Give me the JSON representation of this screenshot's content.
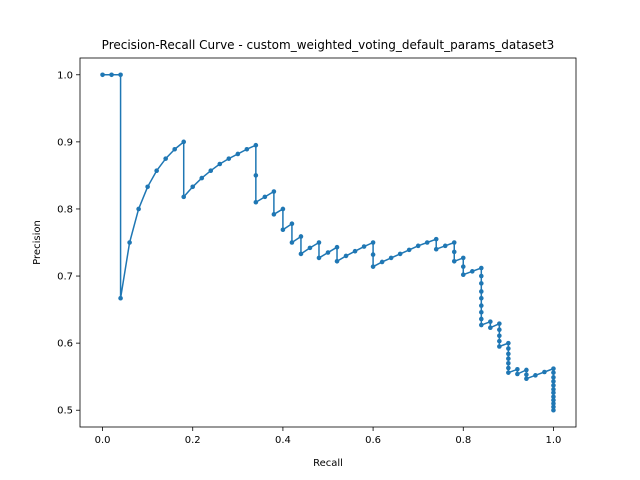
{
  "chart_data": {
    "type": "line",
    "title": "Precision-Recall Curve - custom_weighted_voting_default_params_dataset3",
    "xlabel": "Recall",
    "ylabel": "Precision",
    "xlim": [
      -0.05,
      1.05
    ],
    "ylim": [
      0.475,
      1.025
    ],
    "xticks": [
      0.0,
      0.2,
      0.4,
      0.6,
      0.8,
      1.0
    ],
    "xtick_labels": [
      "0.0",
      "0.2",
      "0.4",
      "0.6",
      "0.8",
      "1.0"
    ],
    "yticks": [
      0.5,
      0.6,
      0.7,
      0.8,
      0.9,
      1.0
    ],
    "ytick_labels": [
      "0.5",
      "0.6",
      "0.7",
      "0.8",
      "0.9",
      "1.0"
    ],
    "grid": false,
    "legend": false,
    "series": [
      {
        "color": "#1f77b4",
        "marker": "circle",
        "points": [
          [
            0.0,
            1.0
          ],
          [
            0.02,
            1.0
          ],
          [
            0.04,
            1.0
          ],
          [
            0.04,
            0.667
          ],
          [
            0.06,
            0.75
          ],
          [
            0.08,
            0.8
          ],
          [
            0.1,
            0.833
          ],
          [
            0.12,
            0.857
          ],
          [
            0.14,
            0.875
          ],
          [
            0.16,
            0.889
          ],
          [
            0.18,
            0.9
          ],
          [
            0.18,
            0.818
          ],
          [
            0.2,
            0.833
          ],
          [
            0.22,
            0.846
          ],
          [
            0.24,
            0.857
          ],
          [
            0.26,
            0.867
          ],
          [
            0.28,
            0.875
          ],
          [
            0.3,
            0.882
          ],
          [
            0.32,
            0.889
          ],
          [
            0.34,
            0.895
          ],
          [
            0.34,
            0.85
          ],
          [
            0.34,
            0.81
          ],
          [
            0.36,
            0.818
          ],
          [
            0.38,
            0.826
          ],
          [
            0.38,
            0.792
          ],
          [
            0.4,
            0.8
          ],
          [
            0.4,
            0.769
          ],
          [
            0.42,
            0.778
          ],
          [
            0.42,
            0.75
          ],
          [
            0.44,
            0.759
          ],
          [
            0.44,
            0.733
          ],
          [
            0.46,
            0.742
          ],
          [
            0.48,
            0.75
          ],
          [
            0.48,
            0.727
          ],
          [
            0.5,
            0.735
          ],
          [
            0.52,
            0.743
          ],
          [
            0.52,
            0.722
          ],
          [
            0.54,
            0.73
          ],
          [
            0.56,
            0.737
          ],
          [
            0.58,
            0.744
          ],
          [
            0.6,
            0.75
          ],
          [
            0.6,
            0.732
          ],
          [
            0.6,
            0.714
          ],
          [
            0.62,
            0.721
          ],
          [
            0.64,
            0.727
          ],
          [
            0.66,
            0.733
          ],
          [
            0.68,
            0.739
          ],
          [
            0.7,
            0.745
          ],
          [
            0.72,
            0.75
          ],
          [
            0.74,
            0.755
          ],
          [
            0.74,
            0.74
          ],
          [
            0.76,
            0.745
          ],
          [
            0.78,
            0.75
          ],
          [
            0.78,
            0.736
          ],
          [
            0.78,
            0.722
          ],
          [
            0.8,
            0.727
          ],
          [
            0.8,
            0.714
          ],
          [
            0.8,
            0.702
          ],
          [
            0.82,
            0.707
          ],
          [
            0.84,
            0.712
          ],
          [
            0.84,
            0.7
          ],
          [
            0.84,
            0.689
          ],
          [
            0.84,
            0.677
          ],
          [
            0.84,
            0.667
          ],
          [
            0.84,
            0.656
          ],
          [
            0.84,
            0.646
          ],
          [
            0.84,
            0.636
          ],
          [
            0.84,
            0.627
          ],
          [
            0.86,
            0.632
          ],
          [
            0.86,
            0.623
          ],
          [
            0.88,
            0.629
          ],
          [
            0.88,
            0.62
          ],
          [
            0.88,
            0.611
          ],
          [
            0.88,
            0.603
          ],
          [
            0.88,
            0.595
          ],
          [
            0.9,
            0.6
          ],
          [
            0.9,
            0.592
          ],
          [
            0.9,
            0.584
          ],
          [
            0.9,
            0.577
          ],
          [
            0.9,
            0.57
          ],
          [
            0.9,
            0.563
          ],
          [
            0.9,
            0.556
          ],
          [
            0.92,
            0.561
          ],
          [
            0.92,
            0.554
          ],
          [
            0.94,
            0.56
          ],
          [
            0.94,
            0.553
          ],
          [
            0.94,
            0.547
          ],
          [
            0.96,
            0.552
          ],
          [
            0.98,
            0.557
          ],
          [
            1.0,
            0.562
          ],
          [
            1.0,
            0.556
          ],
          [
            1.0,
            0.549
          ],
          [
            1.0,
            0.543
          ],
          [
            1.0,
            0.537
          ],
          [
            1.0,
            0.531
          ],
          [
            1.0,
            0.526
          ],
          [
            1.0,
            0.52
          ],
          [
            1.0,
            0.515
          ],
          [
            1.0,
            0.51
          ],
          [
            1.0,
            0.505
          ],
          [
            1.0,
            0.5
          ]
        ]
      }
    ]
  }
}
